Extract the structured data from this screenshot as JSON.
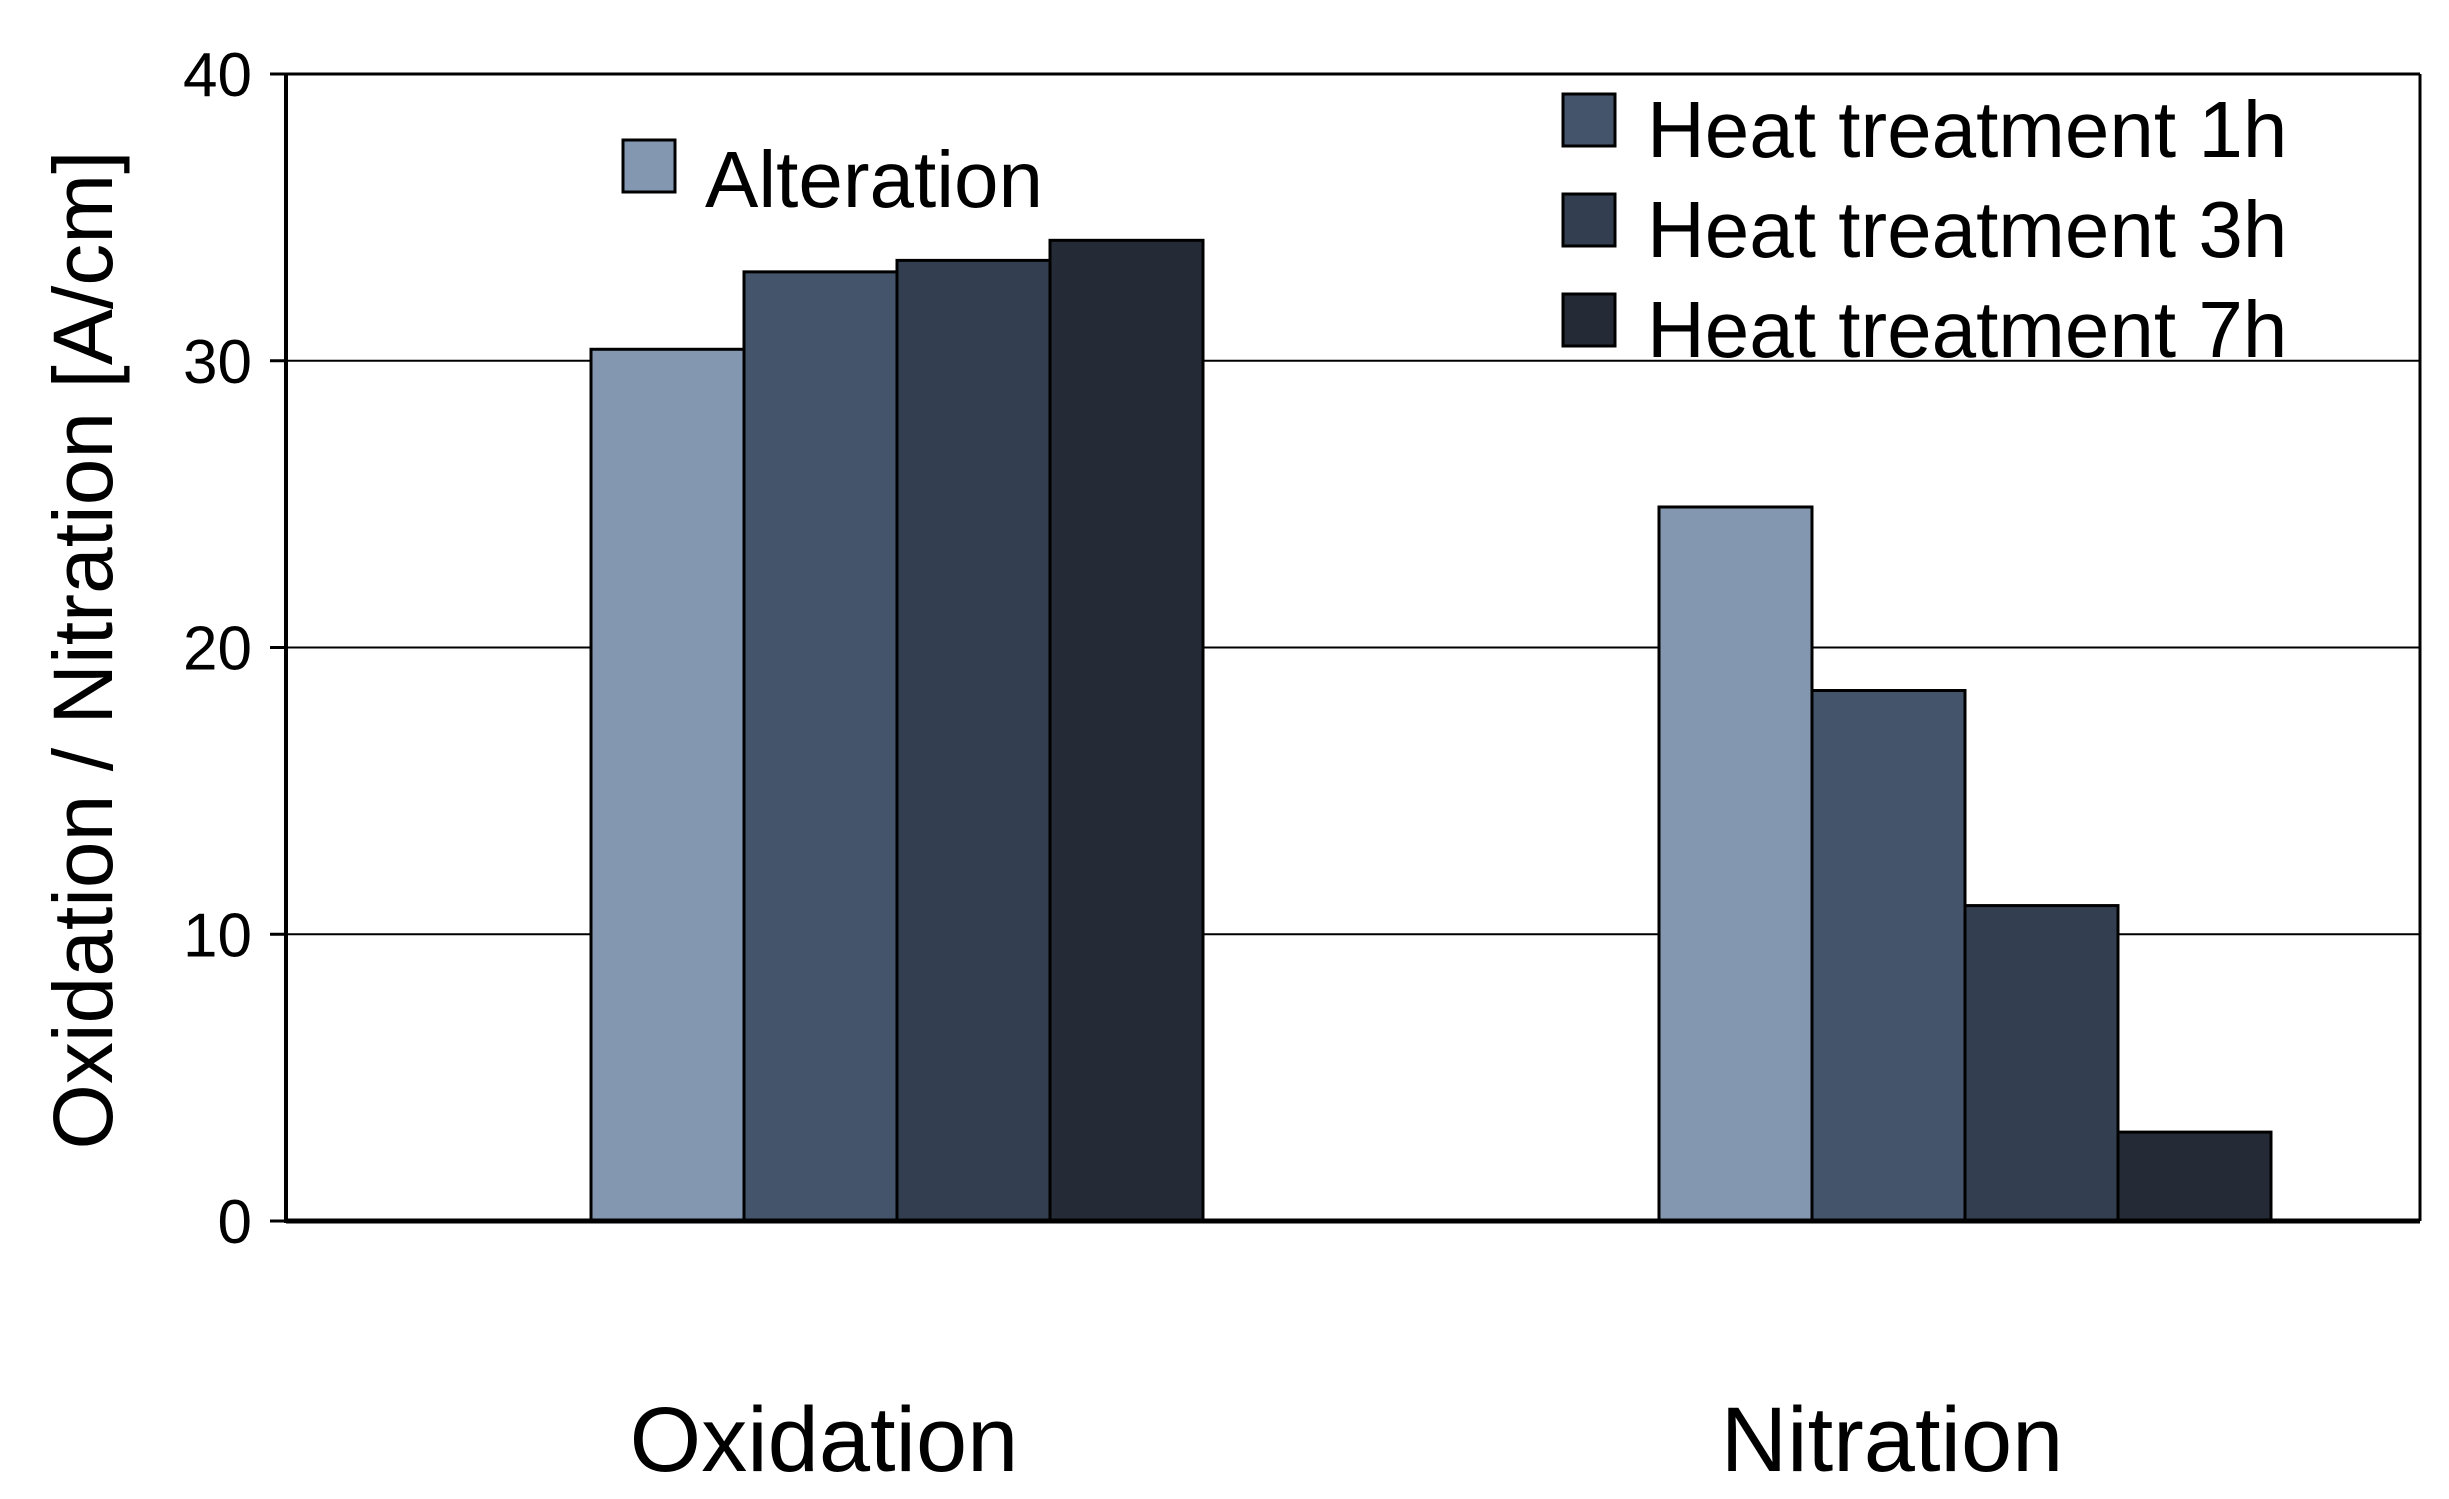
{
  "chart_data": {
    "type": "bar",
    "title": "",
    "xlabel": "",
    "ylabel": "Oxidation / Nitration [A/cm]",
    "ylim": [
      0,
      40
    ],
    "yticks": [
      "0",
      "10",
      "20",
      "30",
      "40"
    ],
    "grid": true,
    "categories": [
      "Oxidation",
      "Nitration"
    ],
    "series": [
      {
        "name": "Alteration",
        "color": "#8497b0",
        "values": [
          30.4,
          24.9
        ]
      },
      {
        "name": "Heat treatment 1h",
        "color": "#44546a",
        "values": [
          33.1,
          18.5
        ]
      },
      {
        "name": "Heat treatment 3h",
        "color": "#333f50",
        "values": [
          33.5,
          11.0
        ]
      },
      {
        "name": "Heat treatment 7h",
        "color": "#252b36",
        "values": [
          34.2,
          3.1
        ]
      }
    ]
  }
}
